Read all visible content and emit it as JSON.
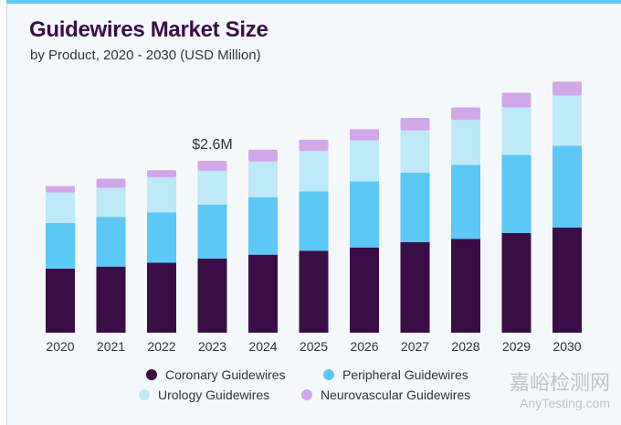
{
  "chart_data": {
    "type": "bar",
    "stacked": true,
    "title": "Guidewires Market Size",
    "subtitle": "by Product, 2020 - 2030 (USD Million)",
    "categories": [
      "2020",
      "2021",
      "2022",
      "2023",
      "2024",
      "2025",
      "2026",
      "2027",
      "2028",
      "2029",
      "2030"
    ],
    "series": [
      {
        "name": "Coronary Guidewires",
        "color": "#3a0d47",
        "values": [
          0.97,
          1.0,
          1.06,
          1.12,
          1.18,
          1.24,
          1.29,
          1.37,
          1.42,
          1.51,
          1.59
        ]
      },
      {
        "name": "Peripheral Guidewires",
        "color": "#5bc8f5",
        "values": [
          0.69,
          0.75,
          0.76,
          0.82,
          0.87,
          0.9,
          1.0,
          1.05,
          1.12,
          1.18,
          1.24
        ]
      },
      {
        "name": "Urology Guidewires",
        "color": "#bde9f9",
        "values": [
          0.46,
          0.44,
          0.53,
          0.51,
          0.54,
          0.61,
          0.62,
          0.64,
          0.68,
          0.72,
          0.76
        ]
      },
      {
        "name": "Neurovascular Guidewires",
        "color": "#d1a7ea",
        "values": [
          0.1,
          0.14,
          0.11,
          0.15,
          0.18,
          0.17,
          0.17,
          0.19,
          0.19,
          0.22,
          0.21
        ]
      }
    ],
    "annotations": [
      {
        "category": "2023",
        "text": "$2.6M"
      }
    ],
    "ylim": [
      0,
      3.8
    ],
    "grid": false,
    "y_axis_visible": false,
    "legend_position": "bottom"
  },
  "watermark": {
    "line1": "嘉峪检测网",
    "line2": "AnyTesting.com"
  },
  "accent_color": "#5bc8f5"
}
